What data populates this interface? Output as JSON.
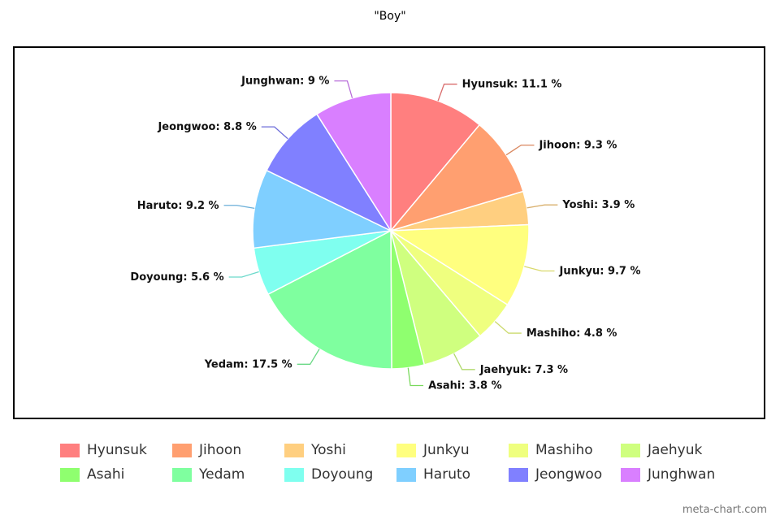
{
  "chart_data": {
    "type": "pie",
    "title": "\"Boy\"",
    "label_format": "{name}: {value} %",
    "slices": [
      {
        "name": "Hyunsuk",
        "value": 11.1,
        "color": "#ff7f7f"
      },
      {
        "name": "Jihoon",
        "value": 9.3,
        "color": "#ff9f70"
      },
      {
        "name": "Yoshi",
        "value": 3.9,
        "color": "#ffcf80"
      },
      {
        "name": "Junkyu",
        "value": 9.7,
        "color": "#ffff7f"
      },
      {
        "name": "Mashiho",
        "value": 4.8,
        "color": "#efff7f"
      },
      {
        "name": "Jaehyuk",
        "value": 7.3,
        "color": "#cfff7f"
      },
      {
        "name": "Asahi",
        "value": 3.8,
        "color": "#8fff6f"
      },
      {
        "name": "Yedam",
        "value": 17.5,
        "color": "#7fff9f"
      },
      {
        "name": "Doyoung",
        "value": 5.6,
        "color": "#7fffef"
      },
      {
        "name": "Haruto",
        "value": 9.2,
        "color": "#7fcfff"
      },
      {
        "name": "Jeongwoo",
        "value": 8.8,
        "color": "#8080ff"
      },
      {
        "name": "Junghwan",
        "value": 9,
        "color": "#d97fff"
      }
    ],
    "legend_position": "bottom"
  },
  "watermark": "meta-chart.com"
}
